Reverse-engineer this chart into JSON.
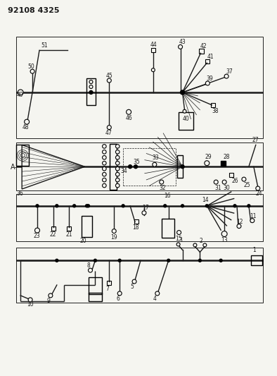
{
  "title": "92108 4325",
  "title_fontsize": 8,
  "title_fontweight": "bold",
  "bg_color": "#f5f5f0",
  "line_color": "#1a1a1a",
  "fig_width": 3.94,
  "fig_height": 5.33,
  "dpi": 100,
  "label_A": "A-",
  "fs_label": 5.5,
  "lw_main": 1.0,
  "lw_thick": 1.8,
  "lw_thin": 0.6
}
